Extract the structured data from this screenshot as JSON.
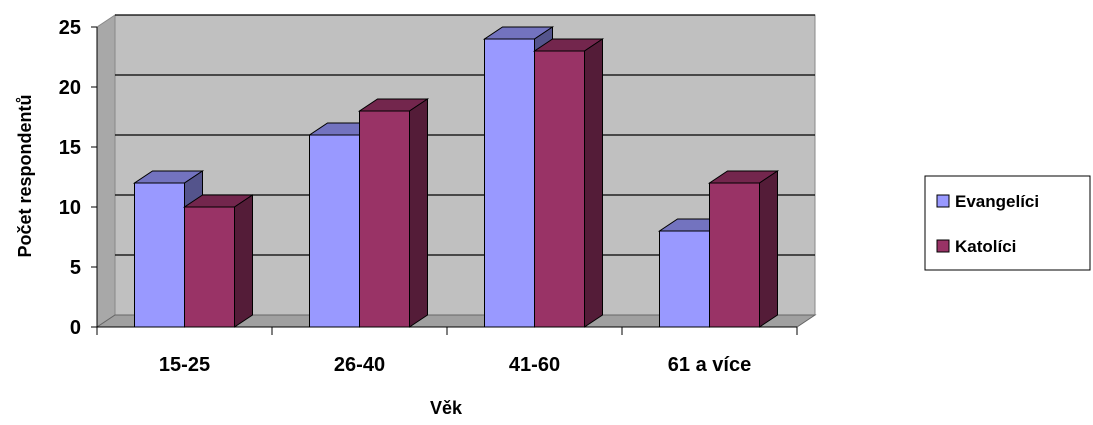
{
  "chart_data": {
    "type": "bar",
    "title": "",
    "xlabel": "Věk",
    "ylabel": "Počet respondentů",
    "categories": [
      "15-25",
      "26-40",
      "41-60",
      "61 a více"
    ],
    "series": [
      {
        "name": "Evangelíci",
        "values": [
          12,
          16,
          24,
          8
        ],
        "color": "#9999ff"
      },
      {
        "name": "Katolíci",
        "values": [
          10,
          18,
          23,
          12
        ],
        "color": "#993366"
      }
    ],
    "ylim": [
      0,
      25
    ],
    "yticks": [
      "0",
      "5",
      "10",
      "15",
      "20",
      "25"
    ],
    "grid": true,
    "legend": "right",
    "style": "3d-column",
    "wall_color": "#c0c0c0"
  }
}
